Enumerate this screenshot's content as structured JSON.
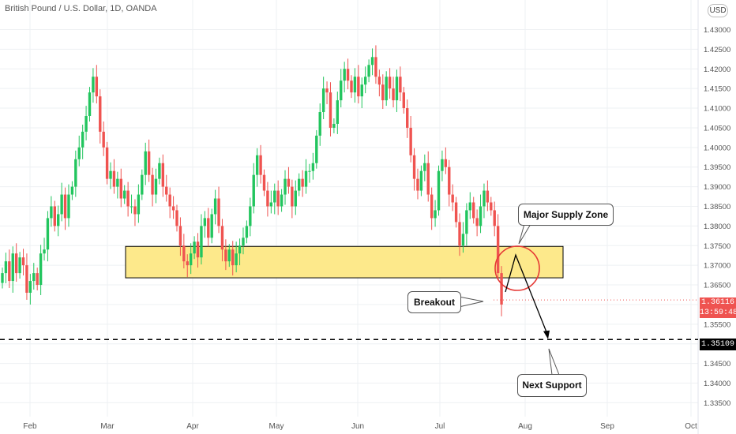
{
  "header": {
    "title": "British Pound / U.S. Dollar, 1D, OANDA",
    "currency": "USD"
  },
  "annotations": {
    "zone_label": "Major Supply Zone",
    "breakout_label": "Breakout",
    "support_label": "Next Support"
  },
  "price_tags": {
    "current_price": "1.36116",
    "countdown": "13:59:48",
    "support_price": "1.35109"
  },
  "colors": {
    "up": "#26a69a",
    "up_bright": "#22c55e",
    "down": "#ef5350",
    "zone_fill": "#fde98b",
    "zone_border": "#000000",
    "circle": "#e53935"
  },
  "chart_data": {
    "type": "candlestick",
    "title": "British Pound / U.S. Dollar, 1D, OANDA",
    "y_ticks": [
      "1.43000",
      "1.42500",
      "1.42000",
      "1.41500",
      "1.41000",
      "1.40500",
      "1.40000",
      "1.39500",
      "1.39000",
      "1.38500",
      "1.38000",
      "1.37500",
      "1.37000",
      "1.36500",
      "1.36000",
      "1.35500",
      "1.35000",
      "1.34500",
      "1.34000",
      "1.33500"
    ],
    "ylim": [
      1.332,
      1.436
    ],
    "x_ticks": [
      "Feb",
      "Mar",
      "Apr",
      "May",
      "Jun",
      "Jul",
      "Aug",
      "Sep",
      "Oct"
    ],
    "grid": true,
    "supply_zone": [
      1.3668,
      1.3748
    ],
    "support_level": 1.35109,
    "current_price": 1.36116,
    "projection": [
      1.3632,
      1.3726,
      1.3512
    ],
    "closes": [
      1.368,
      1.371,
      1.366,
      1.373,
      1.368,
      1.372,
      1.37,
      1.363,
      1.366,
      1.368,
      1.365,
      1.373,
      1.374,
      1.382,
      1.385,
      1.38,
      1.383,
      1.388,
      1.382,
      1.388,
      1.39,
      1.397,
      1.4,
      1.404,
      1.408,
      1.414,
      1.418,
      1.413,
      1.404,
      1.4,
      1.392,
      1.394,
      1.39,
      1.392,
      1.387,
      1.389,
      1.385,
      1.385,
      1.383,
      1.388,
      1.393,
      1.399,
      1.393,
      1.388,
      1.392,
      1.396,
      1.39,
      1.388,
      1.385,
      1.384,
      1.38,
      1.375,
      1.371,
      1.37,
      1.373,
      1.376,
      1.372,
      1.38,
      1.382,
      1.377,
      1.383,
      1.387,
      1.38,
      1.374,
      1.371,
      1.374,
      1.37,
      1.373,
      1.375,
      1.377,
      1.38,
      1.385,
      1.393,
      1.398,
      1.393,
      1.389,
      1.385,
      1.386,
      1.389,
      1.385,
      1.388,
      1.392,
      1.39,
      1.385,
      1.389,
      1.392,
      1.39,
      1.394,
      1.394,
      1.396,
      1.403,
      1.409,
      1.415,
      1.414,
      1.405,
      1.406,
      1.412,
      1.417,
      1.42,
      1.417,
      1.414,
      1.418,
      1.413,
      1.416,
      1.418,
      1.421,
      1.423,
      1.418,
      1.416,
      1.412,
      1.418,
      1.415,
      1.412,
      1.418,
      1.414,
      1.41,
      1.405,
      1.398,
      1.392,
      1.389,
      1.394,
      1.396,
      1.388,
      1.382,
      1.384,
      1.394,
      1.397,
      1.395,
      1.388,
      1.386,
      1.381,
      1.375,
      1.378,
      1.384,
      1.386,
      1.382,
      1.38,
      1.385,
      1.389,
      1.386,
      1.384,
      1.38,
      1.368,
      1.36
    ]
  }
}
